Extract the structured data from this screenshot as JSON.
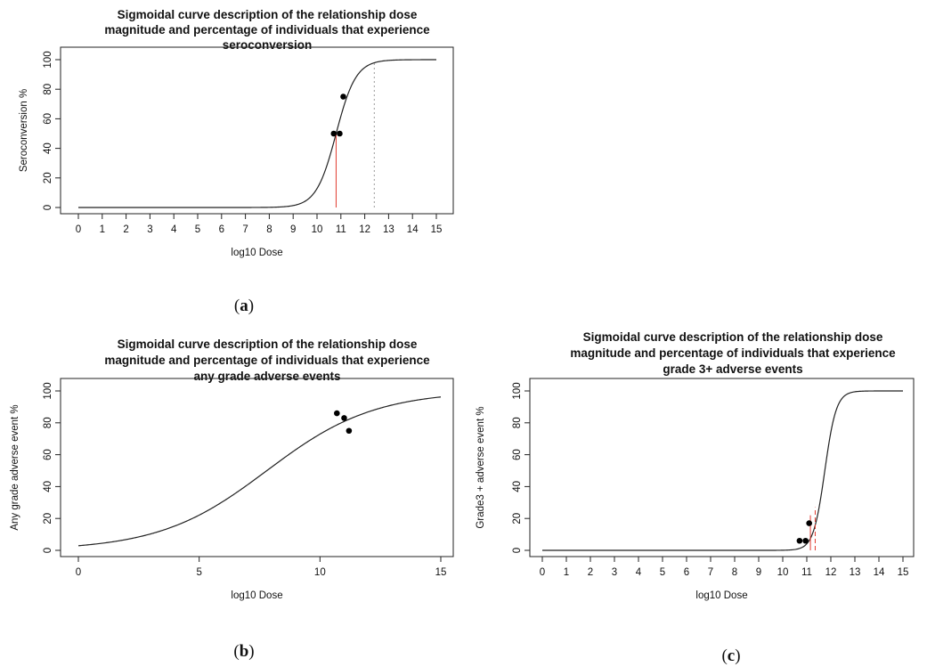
{
  "chart_data": [
    {
      "type": "line",
      "panel": "a",
      "caption_letter": "a",
      "title": [
        "Sigmoidal curve description of the relationship dose",
        "magnitude and percentage of individuals that experience",
        "seroconversion"
      ],
      "xlabel": "log10 Dose",
      "ylabel": "Seroconversion %",
      "xlim": [
        0,
        15
      ],
      "ylim": [
        0,
        100
      ],
      "xticks": [
        0,
        1,
        2,
        3,
        4,
        5,
        6,
        7,
        8,
        9,
        10,
        11,
        12,
        13,
        14,
        15
      ],
      "yticks": [
        0,
        20,
        40,
        60,
        80,
        100
      ],
      "curve": {
        "midpoint": 10.8,
        "slope": 2.4,
        "color": "#222222"
      },
      "points": [
        {
          "x": 10.7,
          "y": 50
        },
        {
          "x": 10.95,
          "y": 50
        },
        {
          "x": 11.1,
          "y": 75
        }
      ],
      "vlines": [
        {
          "x": 10.8,
          "y": 50,
          "color": "#e03a2f",
          "style": "solid"
        },
        {
          "x": 12.4,
          "y": 98,
          "color": "#999999",
          "style": "dotted"
        }
      ]
    },
    {
      "type": "line",
      "panel": "b",
      "caption_letter": "b",
      "title": [
        "Sigmoidal curve description of the relationship dose",
        "magnitude and percentage of individuals that experience",
        "any grade adverse events"
      ],
      "xlabel": "log10 Dose",
      "ylabel": "Any grade adverse event %",
      "xlim": [
        0,
        15
      ],
      "ylim": [
        0,
        100
      ],
      "xticks": [
        0,
        5,
        10,
        15
      ],
      "yticks": [
        0,
        20,
        40,
        60,
        80,
        100
      ],
      "curve": {
        "midpoint": 7.8,
        "slope": 0.45,
        "color": "#222222"
      },
      "points": [
        {
          "x": 10.7,
          "y": 86
        },
        {
          "x": 11.0,
          "y": 83
        },
        {
          "x": 11.2,
          "y": 75
        }
      ],
      "vlines": []
    },
    {
      "type": "line",
      "panel": "c",
      "caption_letter": "c",
      "title": [
        "Sigmoidal curve description of the relationship dose",
        "magnitude and percentage of individuals that experience",
        "grade 3+ adverse events"
      ],
      "xlabel": "log10 Dose",
      "ylabel": "Grade3 + adverse event %",
      "xlim": [
        0,
        15
      ],
      "ylim": [
        0,
        100
      ],
      "xticks": [
        0,
        1,
        2,
        3,
        4,
        5,
        6,
        7,
        8,
        9,
        10,
        11,
        12,
        13,
        14,
        15
      ],
      "yticks": [
        0,
        20,
        40,
        60,
        80,
        100
      ],
      "curve": {
        "midpoint": 11.75,
        "slope": 4.2,
        "color": "#222222"
      },
      "points": [
        {
          "x": 10.7,
          "y": 6
        },
        {
          "x": 10.95,
          "y": 6
        },
        {
          "x": 11.1,
          "y": 17
        }
      ],
      "vlines": [
        {
          "x": 11.15,
          "y": 22,
          "color": "#e03a2f",
          "style": "solid"
        },
        {
          "x": 11.35,
          "y": 27,
          "color": "#e03a2f",
          "style": "dashed"
        }
      ]
    }
  ]
}
